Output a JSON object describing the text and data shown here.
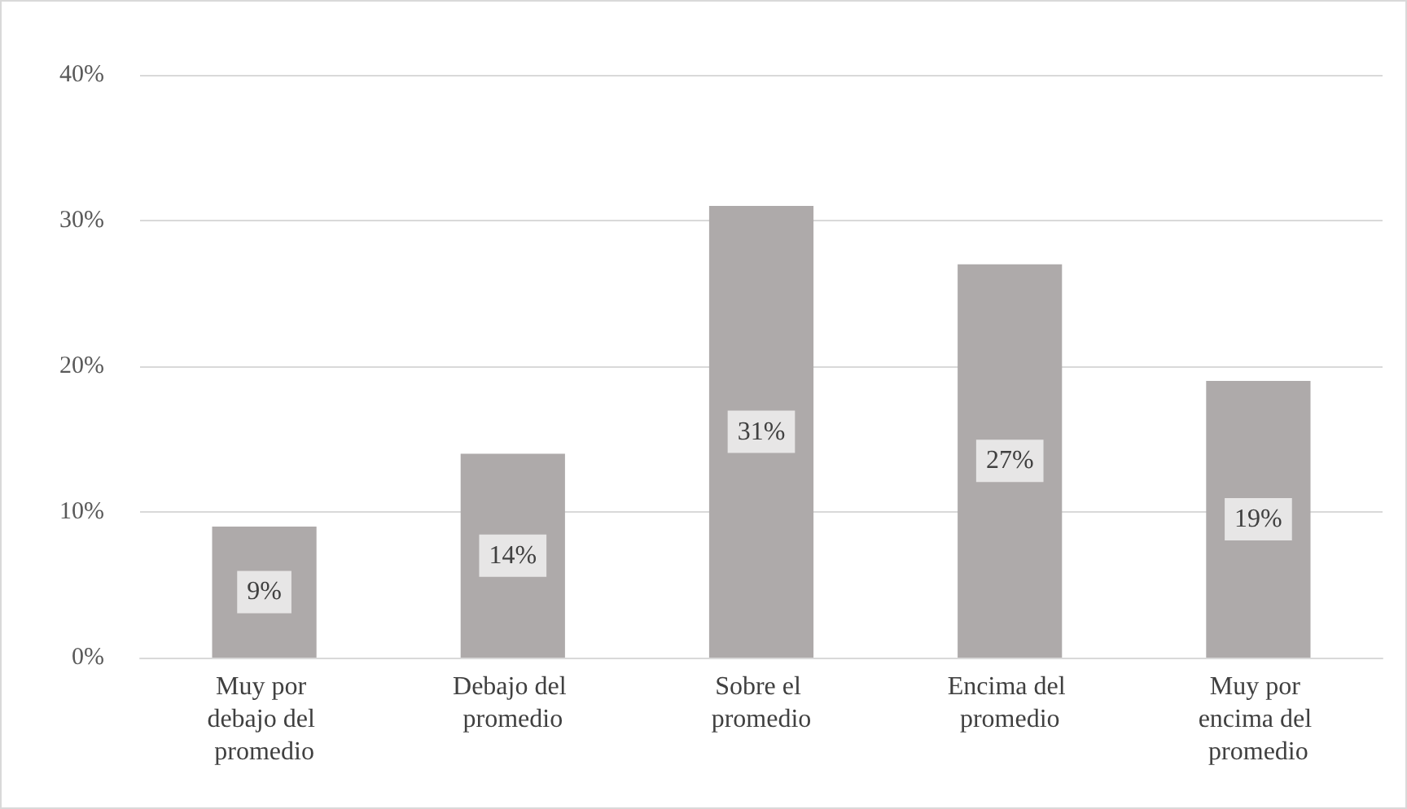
{
  "chart_data": {
    "type": "bar",
    "categories": [
      "Muy por debajo del promedio",
      "Debajo del promedio",
      "Sobre el promedio",
      "Encima del promedio",
      "Muy por encima del promedio"
    ],
    "values": [
      9,
      14,
      31,
      27,
      19
    ],
    "value_labels": [
      "9%",
      "14%",
      "31%",
      "27%",
      "19%"
    ],
    "color": "#aeaaaa",
    "ylim": [
      0,
      40
    ],
    "yticks": [
      {
        "value": 0,
        "label": "0%"
      },
      {
        "value": 10,
        "label": "10%"
      },
      {
        "value": 20,
        "label": "20%"
      },
      {
        "value": 30,
        "label": "30%"
      },
      {
        "value": 40,
        "label": "40%"
      }
    ],
    "grid": "y"
  }
}
